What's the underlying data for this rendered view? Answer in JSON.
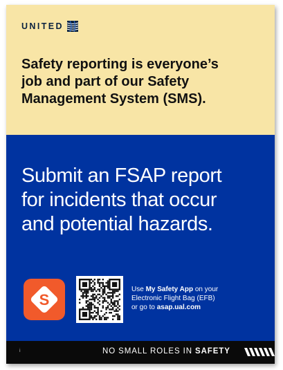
{
  "brand": {
    "wordmark": "UNITED",
    "logo_icon": "globe-icon"
  },
  "headline": {
    "line1": "Safety reporting is everyone’s",
    "line2": "job and part of our Safety",
    "line3": "Management System (SMS)."
  },
  "main": {
    "line1": "Submit an FSAP report",
    "line2": "for incidents that occur",
    "line3": "and potential hazards."
  },
  "app": {
    "icon": "my-safety-app-icon",
    "icon_letter": "S",
    "qr_icon": "qr-code-icon"
  },
  "instructions": {
    "use": "Use ",
    "app_name": "My Safety App",
    "on_your": " on your",
    "line2": "Electronic Flight Bag (EFB)",
    "go_to": "or go to ",
    "url": "asap.ual.com"
  },
  "footer": {
    "page_mark": "i",
    "tagline_prefix": "NO SMALL ROLES IN ",
    "tagline_bold": "SAFETY",
    "stripes_icon": "hazard-stripes-icon"
  },
  "colors": {
    "yellow_band": "#f8e5a6",
    "blue_band": "#0033a0",
    "footer_band": "#0a0a0a",
    "app_orange": "#f15a2b",
    "navy_text": "#0c2340"
  }
}
